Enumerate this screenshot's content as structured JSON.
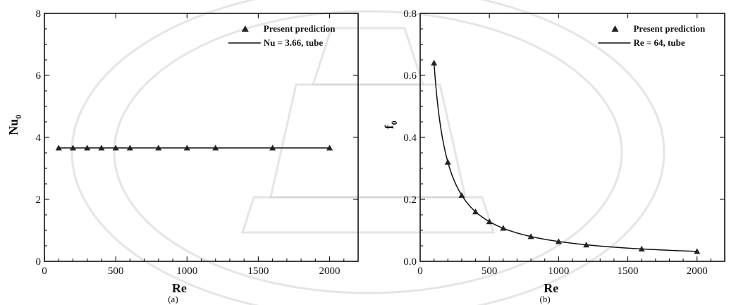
{
  "watermark": {
    "kind": "university-seal",
    "color": "#cfcfcf"
  },
  "chart_data": [
    {
      "type": "line",
      "panel_label": "(a)",
      "xlabel": "Re",
      "ylabel_main": "Nu",
      "ylabel_sub": "0",
      "xlim": [
        0,
        2200
      ],
      "ylim": [
        0,
        8
      ],
      "xticks": [
        0,
        500,
        1000,
        1500,
        2000
      ],
      "xtick_labels": [
        "0",
        "500",
        "1000",
        "1500",
        "2000"
      ],
      "yticks": [
        0,
        2,
        4,
        6,
        8
      ],
      "ytick_labels": [
        "0",
        "2",
        "4",
        "6",
        "8"
      ],
      "legend_position": "top-right",
      "series": [
        {
          "name": "Present prediction",
          "style": "triangle-markers",
          "x": [
            100,
            200,
            300,
            400,
            500,
            600,
            800,
            1000,
            1200,
            1600,
            2000
          ],
          "y": [
            3.66,
            3.66,
            3.66,
            3.66,
            3.66,
            3.66,
            3.66,
            3.66,
            3.66,
            3.66,
            3.66
          ]
        },
        {
          "name": "Nu = 3.66, tube",
          "style": "solid-line",
          "x": [
            100,
            2000
          ],
          "y": [
            3.66,
            3.66
          ]
        }
      ]
    },
    {
      "type": "line",
      "panel_label": "(b)",
      "xlabel": "Re",
      "ylabel_main": "f",
      "ylabel_sub": "0",
      "xlim": [
        0,
        2200
      ],
      "ylim": [
        0,
        0.8
      ],
      "xticks": [
        0,
        500,
        1000,
        1500,
        2000
      ],
      "xtick_labels": [
        "0",
        "500",
        "1000",
        "1500",
        "2000"
      ],
      "yticks": [
        0,
        0.2,
        0.4,
        0.6,
        0.8
      ],
      "ytick_labels": [
        "0.0",
        "0.2",
        "0.4",
        "0.6",
        "0.8"
      ],
      "legend_position": "top-right",
      "series": [
        {
          "name": "Present prediction",
          "style": "triangle-markers",
          "x": [
            100,
            200,
            300,
            400,
            500,
            600,
            800,
            1000,
            1200,
            1600,
            2000
          ],
          "y": [
            0.64,
            0.32,
            0.213,
            0.16,
            0.128,
            0.107,
            0.08,
            0.064,
            0.053,
            0.04,
            0.032
          ]
        },
        {
          "name": "Re = 64, tube",
          "style": "solid-line",
          "formula": "64/Re",
          "x_from": 100,
          "x_to": 2000
        }
      ]
    }
  ]
}
